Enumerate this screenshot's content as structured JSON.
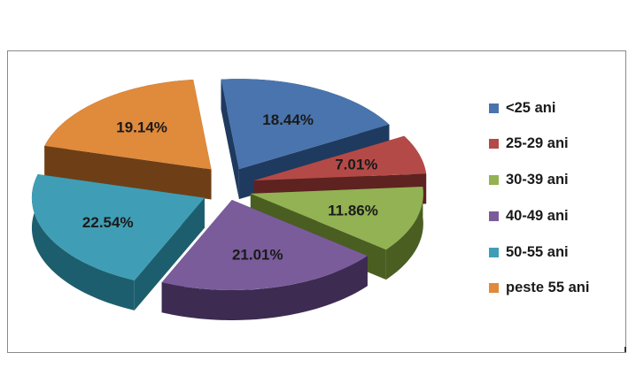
{
  "chart_data": {
    "type": "pie",
    "title": "",
    "style": "3d-exploded",
    "legend_position": "right",
    "categories": [
      "<25 ani",
      "25-29 ani",
      "30-39 ani",
      "40-49 ani",
      "50-55 ani",
      "peste 55 ani"
    ],
    "values": [
      18.44,
      7.01,
      11.86,
      21.01,
      22.54,
      19.14
    ],
    "labels": [
      "18.44%",
      "7.01%",
      "11.86%",
      "21.01%",
      "22.54%",
      "19.14%"
    ],
    "colors": [
      "#4a74ad",
      "#b44a47",
      "#93b253",
      "#7a5c9b",
      "#3f9eb5",
      "#e08a3c"
    ],
    "side_colors": [
      "#1f3a5f",
      "#5e2220",
      "#4a5e22",
      "#3d2b52",
      "#1d5e6e",
      "#6e3f16"
    ]
  }
}
